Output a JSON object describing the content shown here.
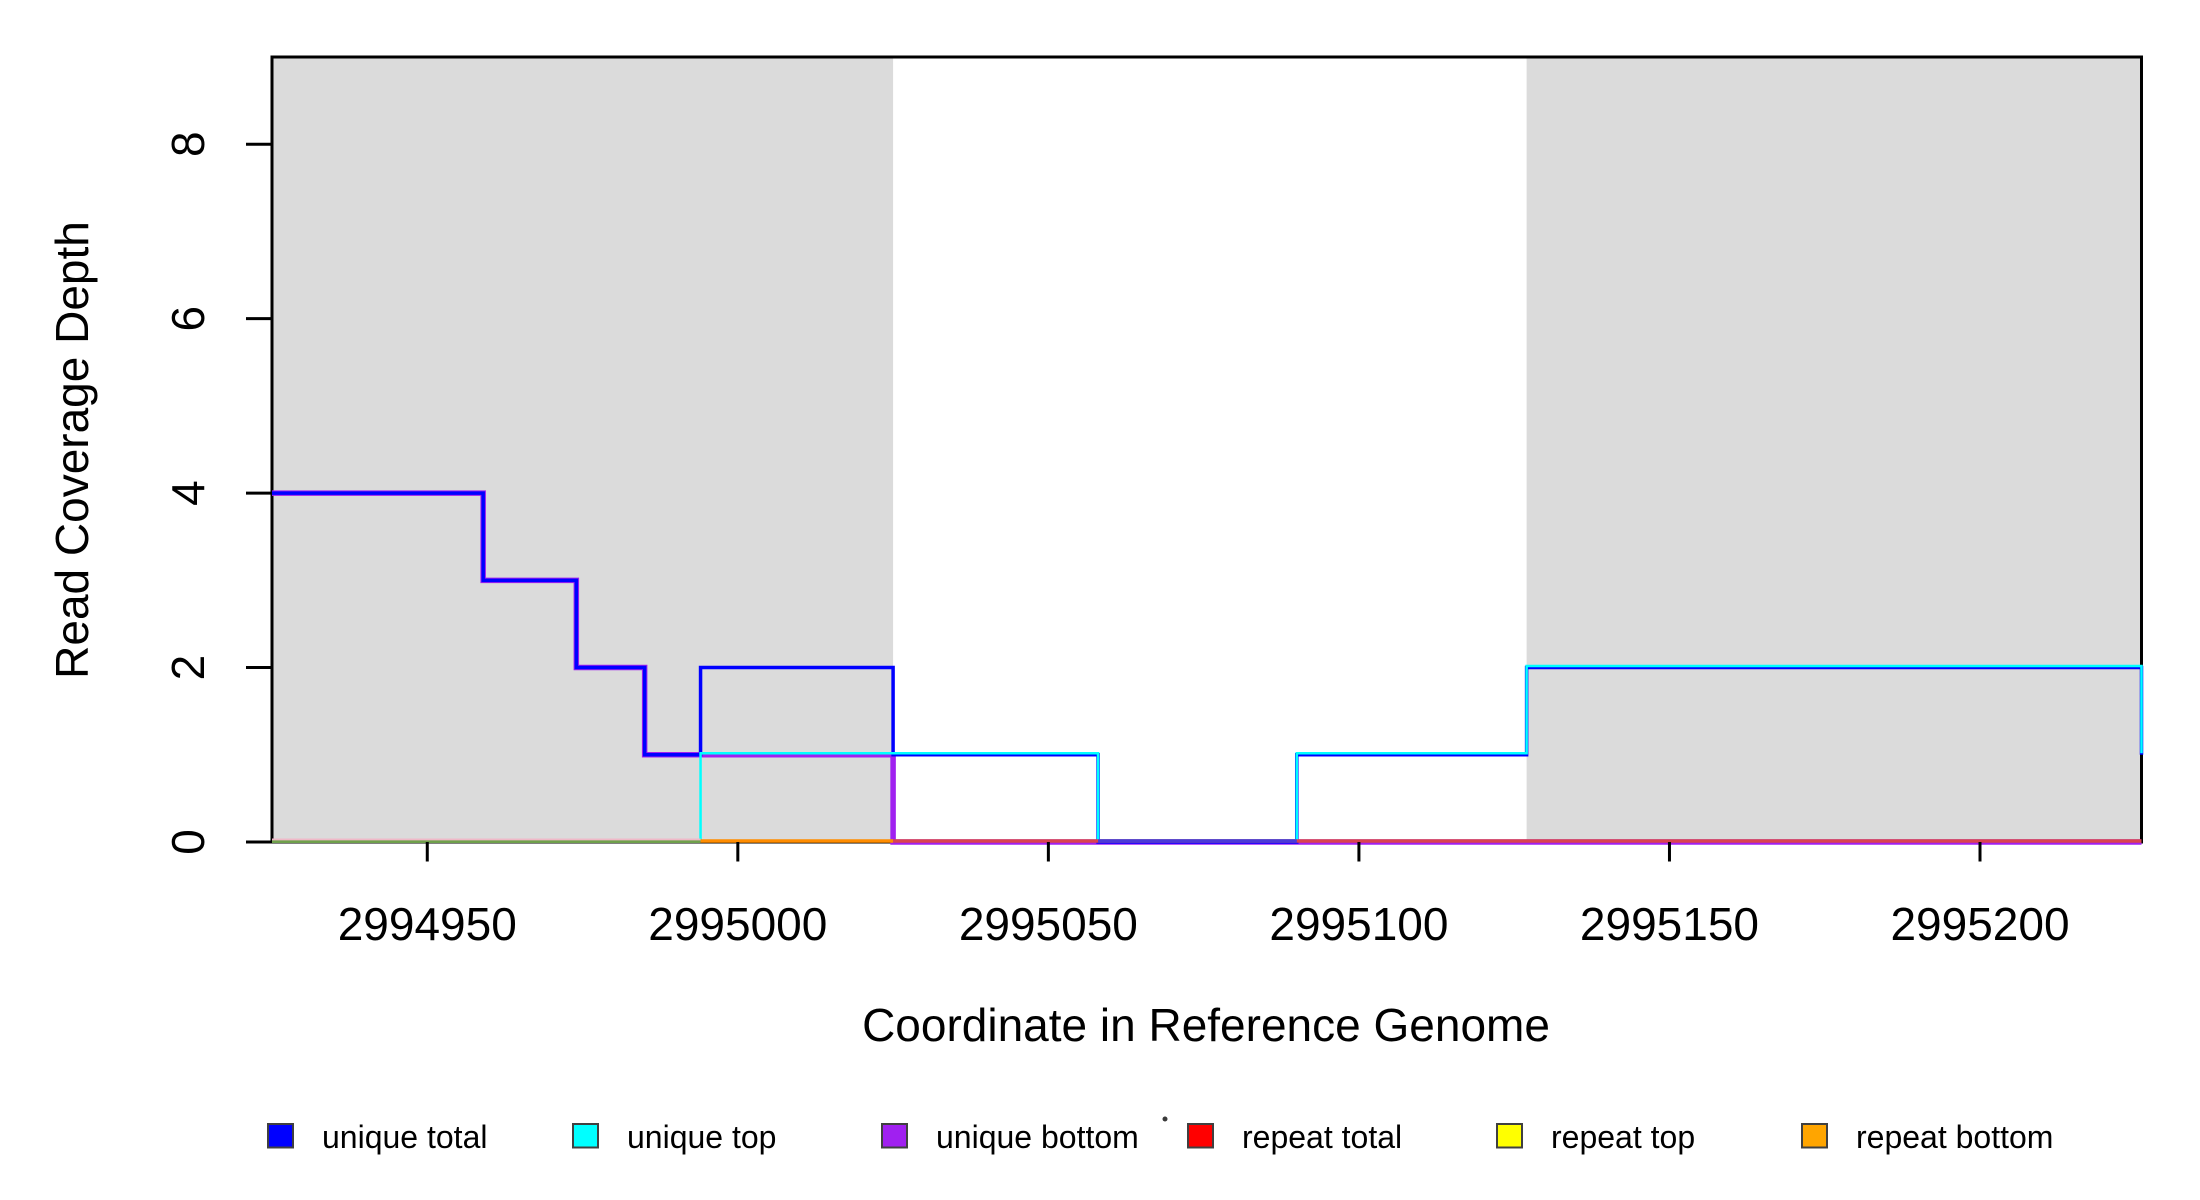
{
  "chart_data": {
    "type": "line",
    "subtype": "step-coverage",
    "title": "",
    "xlabel": "Coordinate in Reference Genome",
    "ylabel": "Read Coverage Depth",
    "xlim": [
      2994925,
      2995226
    ],
    "ylim": [
      0,
      9
    ],
    "grid": false,
    "x_ticks": [
      2994950,
      2995000,
      2995050,
      2995100,
      2995150,
      2995200
    ],
    "x_tick_labels": [
      "2994950",
      "2995000",
      "2995050",
      "2995100",
      "2995150",
      "2995200"
    ],
    "y_ticks": [
      0,
      2,
      4,
      6,
      8
    ],
    "y_tick_labels": [
      "0",
      "2",
      "4",
      "6",
      "8"
    ],
    "shaded_regions": [
      {
        "name": "masked-region-left",
        "x0": 2994925,
        "x1": 2995025,
        "color": "#DBDBDB"
      },
      {
        "name": "masked-region-right",
        "x0": 2995127,
        "x1": 2995226,
        "color": "#DBDBDB"
      }
    ],
    "series": [
      {
        "name": "unique bottom",
        "color": "#A020F0",
        "width": 5.5,
        "steps": [
          [
            2994925,
            4
          ],
          [
            2994959,
            3
          ],
          [
            2994974,
            2
          ],
          [
            2994985,
            1
          ],
          [
            2995025,
            0
          ],
          [
            2995226,
            0
          ]
        ]
      },
      {
        "name": "unique total",
        "color": "#0000FF",
        "width": 3.5,
        "steps": [
          [
            2994925,
            4
          ],
          [
            2994959,
            3
          ],
          [
            2994974,
            2
          ],
          [
            2994985,
            1
          ],
          [
            2994994,
            2
          ],
          [
            2995025,
            1
          ],
          [
            2995058,
            0
          ],
          [
            2995090,
            1
          ],
          [
            2995127,
            2
          ],
          [
            2995226,
            1
          ]
        ]
      },
      {
        "name": "unique top",
        "color": "#00FFFF",
        "width": 2.5,
        "dy": -1.5,
        "steps": [
          [
            2994925,
            0
          ],
          [
            2994994,
            1
          ],
          [
            2995058,
            0
          ],
          [
            2995090,
            1
          ],
          [
            2995127,
            2
          ],
          [
            2995226,
            1
          ]
        ]
      }
    ],
    "zero_overlays": [
      {
        "name": "zero-line-pink",
        "color": "#EFB9C8",
        "x0": 2994925,
        "x1": 2994994,
        "dy": -2.5,
        "width": 2
      },
      {
        "name": "zero-line-green",
        "color": "#6FA04C",
        "x0": 2994925,
        "x1": 2994994,
        "dy": -0.3,
        "width": 2.6
      },
      {
        "name": "zero-line-orange",
        "color": "#FF8C00",
        "x0": 2994994,
        "x1": 2995025,
        "dy": -1,
        "width": 3.6
      },
      {
        "name": "zero-line-crimson",
        "color": "#D9434F",
        "x0": 2995025,
        "x1": 2995226,
        "dy": -1,
        "width": 3.6
      },
      {
        "name": "zero-line-blueviolet",
        "color": "#4A3AD8",
        "x0": 2995058,
        "x1": 2995090,
        "dy": -1,
        "width": 3.6
      }
    ],
    "legend": {
      "position": "bottom",
      "entries": [
        {
          "label": "unique total",
          "color": "#0000FF"
        },
        {
          "label": "unique top",
          "color": "#00FFFF"
        },
        {
          "label": "unique bottom",
          "color": "#A020F0"
        },
        {
          "label": "repeat total",
          "color": "#FF0000"
        },
        {
          "label": "repeat top",
          "color": "#FFFF00"
        },
        {
          "label": "repeat bottom",
          "color": "#FFA500"
        }
      ]
    },
    "stray_mark": {
      "x": 1165,
      "y": 1119
    }
  },
  "colors": {
    "background": "#FFFFFF",
    "box_border": "#000000",
    "shaded_region": "#DBDBDB",
    "tick": "#000000",
    "text": "#000000"
  }
}
